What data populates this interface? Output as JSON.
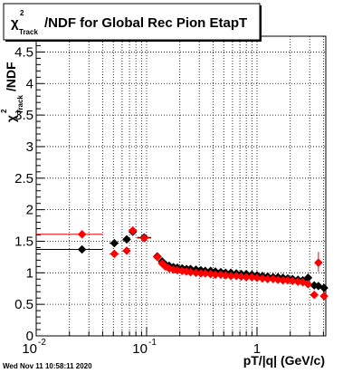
{
  "chart_data": {
    "type": "scatter",
    "title": {
      "chi": "χ",
      "sup": "2",
      "sub": "Track",
      "rest": "/NDF for Global Rec Pion EtapT"
    },
    "xlabel": "pT/|q| (GeV/c)",
    "ylabel": {
      "chi": "χ",
      "sup": "2",
      "sub": "Track",
      "rest": "/NDF"
    },
    "xscale": "log",
    "xlim": [
      0.01,
      4.2
    ],
    "ylim": [
      0,
      4.75
    ],
    "grid": true,
    "x_ticks": [
      {
        "value": 0.01,
        "base": "10",
        "exp": "-2"
      },
      {
        "value": 0.1,
        "base": "10",
        "exp": "-1"
      },
      {
        "value": 1,
        "base": "1",
        "exp": ""
      }
    ],
    "y_ticks": [
      {
        "value": 0,
        "label": "0"
      },
      {
        "value": 0.5,
        "label": "0.5"
      },
      {
        "value": 1,
        "label": "1"
      },
      {
        "value": 1.5,
        "label": "1.5"
      },
      {
        "value": 2,
        "label": "2"
      },
      {
        "value": 2.5,
        "label": "2.5"
      },
      {
        "value": 3,
        "label": "3"
      },
      {
        "value": 3.5,
        "label": "3.5"
      },
      {
        "value": 4,
        "label": "4"
      },
      {
        "value": 4.5,
        "label": "4.5"
      }
    ],
    "series": [
      {
        "color": "#000000",
        "marker": "diamond",
        "points": [
          {
            "x": 0.026,
            "y": 1.37,
            "xlo": 0.01,
            "xhi": 0.04
          },
          {
            "x": 0.051,
            "y": 1.47,
            "xlo": 0.046,
            "xhi": 0.056
          },
          {
            "x": 0.066,
            "y": 1.53,
            "xlo": 0.061,
            "xhi": 0.071
          },
          {
            "x": 0.075,
            "y": 1.65
          },
          {
            "x": 0.095,
            "y": 1.56,
            "xlo": 0.082,
            "xhi": 0.11
          },
          {
            "x": 0.125,
            "y": 1.26
          },
          {
            "x": 0.138,
            "y": 1.18
          },
          {
            "x": 0.148,
            "y": 1.13
          },
          {
            "x": 0.16,
            "y": 1.11
          },
          {
            "x": 0.175,
            "y": 1.09
          },
          {
            "x": 0.19,
            "y": 1.08
          },
          {
            "x": 0.21,
            "y": 1.07
          },
          {
            "x": 0.23,
            "y": 1.06
          },
          {
            "x": 0.25,
            "y": 1.06
          },
          {
            "x": 0.28,
            "y": 1.05
          },
          {
            "x": 0.31,
            "y": 1.04
          },
          {
            "x": 0.34,
            "y": 1.03
          },
          {
            "x": 0.38,
            "y": 1.03
          },
          {
            "x": 0.42,
            "y": 1.02
          },
          {
            "x": 0.47,
            "y": 1.01
          },
          {
            "x": 0.52,
            "y": 1.0
          },
          {
            "x": 0.58,
            "y": 1.0
          },
          {
            "x": 0.65,
            "y": 0.99
          },
          {
            "x": 0.72,
            "y": 0.98
          },
          {
            "x": 0.8,
            "y": 0.98
          },
          {
            "x": 0.9,
            "y": 0.97
          },
          {
            "x": 1.0,
            "y": 0.96
          },
          {
            "x": 1.12,
            "y": 0.95
          },
          {
            "x": 1.25,
            "y": 0.94
          },
          {
            "x": 1.4,
            "y": 0.93
          },
          {
            "x": 1.55,
            "y": 0.93
          },
          {
            "x": 1.72,
            "y": 0.92
          },
          {
            "x": 1.9,
            "y": 0.91
          },
          {
            "x": 2.1,
            "y": 0.9
          },
          {
            "x": 2.35,
            "y": 0.89
          },
          {
            "x": 2.6,
            "y": 0.88
          },
          {
            "x": 2.9,
            "y": 0.92
          },
          {
            "x": 3.3,
            "y": 0.8
          },
          {
            "x": 3.6,
            "y": 0.79
          },
          {
            "x": 4.05,
            "y": 0.76
          }
        ]
      },
      {
        "color": "#ff0000",
        "marker": "diamond",
        "points": [
          {
            "x": 0.026,
            "y": 1.61,
            "xlo": 0.01,
            "xhi": 0.04
          },
          {
            "x": 0.051,
            "y": 1.3,
            "xlo": 0.046,
            "xhi": 0.056
          },
          {
            "x": 0.066,
            "y": 1.35,
            "xlo": 0.061,
            "xhi": 0.071
          },
          {
            "x": 0.075,
            "y": 1.67
          },
          {
            "x": 0.095,
            "y": 1.55,
            "xlo": 0.082,
            "xhi": 0.11
          },
          {
            "x": 0.125,
            "y": 1.25
          },
          {
            "x": 0.138,
            "y": 1.15
          },
          {
            "x": 0.148,
            "y": 1.1
          },
          {
            "x": 0.16,
            "y": 1.07
          },
          {
            "x": 0.175,
            "y": 1.05
          },
          {
            "x": 0.19,
            "y": 1.04
          },
          {
            "x": 0.21,
            "y": 1.03
          },
          {
            "x": 0.23,
            "y": 1.02
          },
          {
            "x": 0.25,
            "y": 1.01
          },
          {
            "x": 0.28,
            "y": 1.0
          },
          {
            "x": 0.31,
            "y": 0.99
          },
          {
            "x": 0.34,
            "y": 0.99
          },
          {
            "x": 0.38,
            "y": 0.98
          },
          {
            "x": 0.42,
            "y": 0.97
          },
          {
            "x": 0.47,
            "y": 0.97
          },
          {
            "x": 0.52,
            "y": 0.96
          },
          {
            "x": 0.58,
            "y": 0.95
          },
          {
            "x": 0.65,
            "y": 0.95
          },
          {
            "x": 0.72,
            "y": 0.94
          },
          {
            "x": 0.8,
            "y": 0.93
          },
          {
            "x": 0.9,
            "y": 0.93
          },
          {
            "x": 1.0,
            "y": 0.92
          },
          {
            "x": 1.12,
            "y": 0.91
          },
          {
            "x": 1.25,
            "y": 0.9
          },
          {
            "x": 1.4,
            "y": 0.9
          },
          {
            "x": 1.55,
            "y": 0.89
          },
          {
            "x": 1.72,
            "y": 0.88
          },
          {
            "x": 1.9,
            "y": 0.88
          },
          {
            "x": 2.1,
            "y": 0.87
          },
          {
            "x": 2.35,
            "y": 0.86
          },
          {
            "x": 2.6,
            "y": 0.85
          },
          {
            "x": 2.9,
            "y": 0.82
          },
          {
            "x": 3.3,
            "y": 0.65
          },
          {
            "x": 3.6,
            "y": 1.16,
            "ylo": 1.02,
            "yhi": 1.33
          },
          {
            "x": 4.05,
            "y": 0.63
          }
        ]
      }
    ]
  },
  "datestamp": "Wed Nov 11 10:58:11 2020"
}
